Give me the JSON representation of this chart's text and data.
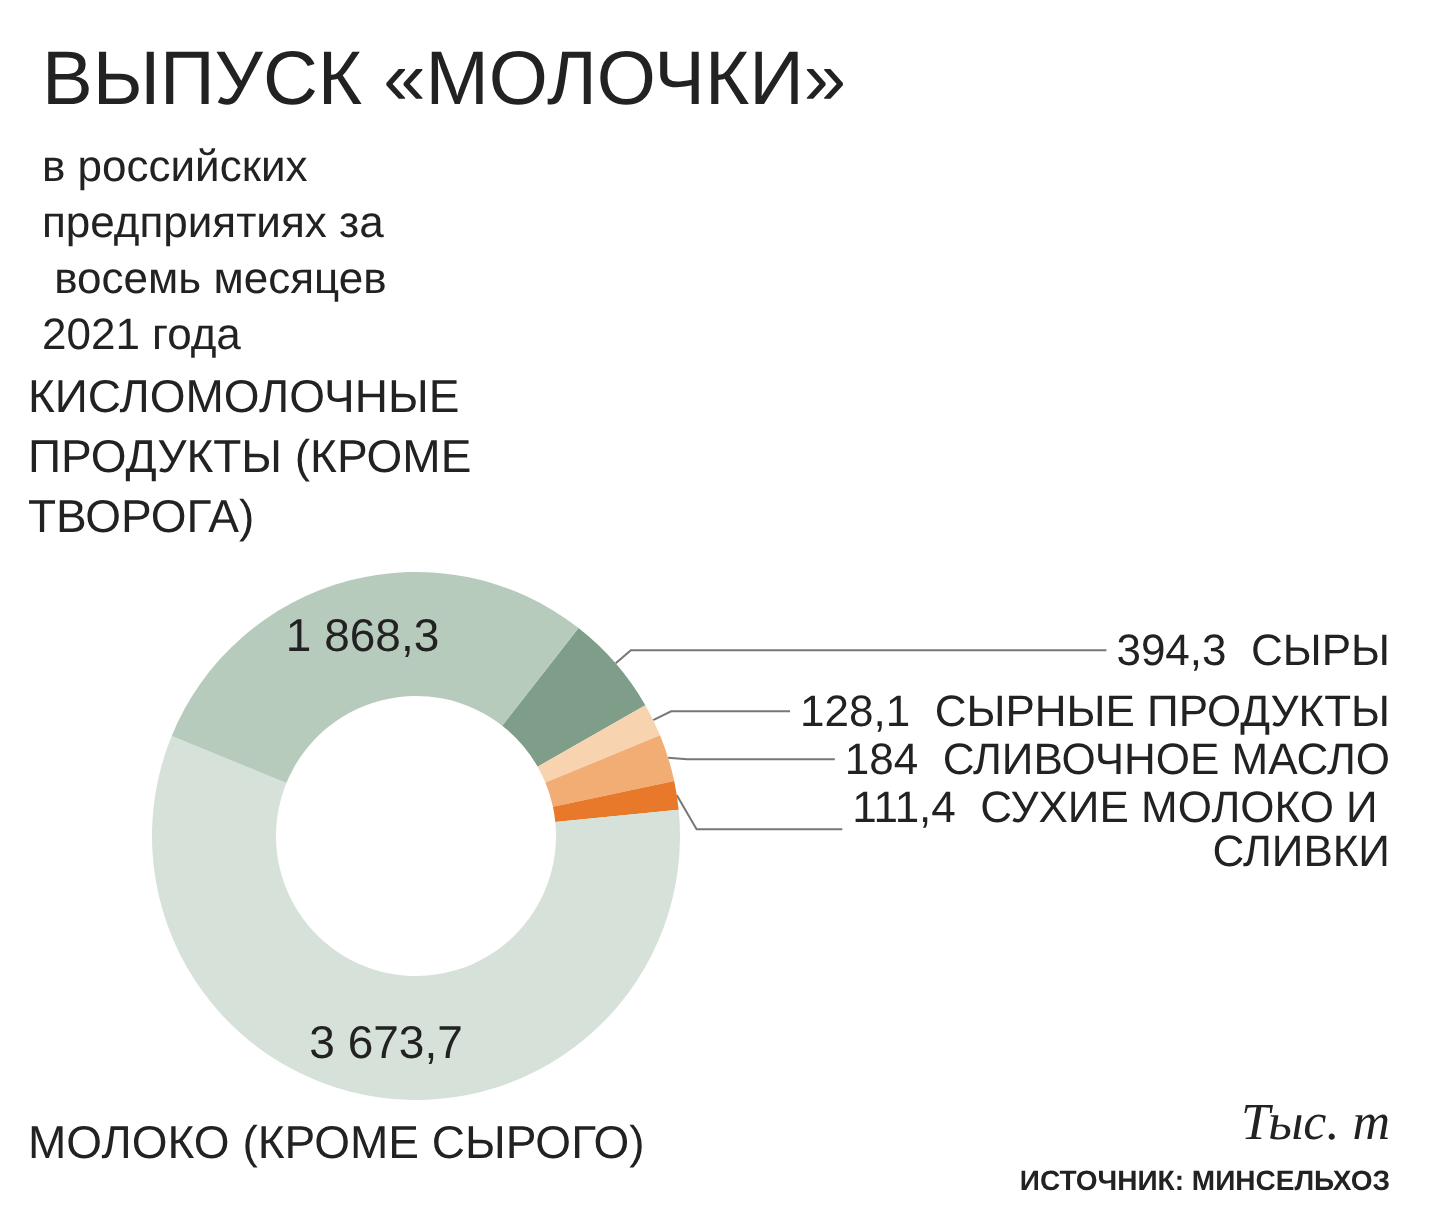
{
  "chart_data": {
    "type": "donut",
    "title": "ВЫПУСК «МОЛОЧКИ»",
    "subtitle": "в российских предприятиях за восемь месяцев 2021 года",
    "categories": [
      "СЫРЫ",
      "СЫРНЫЕ ПРОДУКТЫ",
      "СЛИВОЧНОЕ МАСЛО",
      "СУХИЕ МОЛОКО И СЛИВКИ",
      "МОЛОКО (КРОМЕ СЫРОГО)",
      "КИСЛОМОЛОЧНЫЕ ПРОДУКТЫ (КРОМЕ ТВОРОГА)"
    ],
    "values": [
      394.3,
      128.1,
      184,
      111.4,
      3673.7,
      1868.3
    ],
    "colors": [
      "#7f9e8a",
      "#f7d3b0",
      "#f2ad74",
      "#e8792b",
      "#d6e1d9",
      "#b7cbbd"
    ],
    "value_labels": [
      "394,3",
      "128,1",
      "184",
      "111,4",
      "3 673,7",
      "1 868,3"
    ],
    "legend": false,
    "annotations": [
      "Тыс. т",
      "ИСТОЧНИК: МИНСЕЛЬХОЗ"
    ]
  }
}
